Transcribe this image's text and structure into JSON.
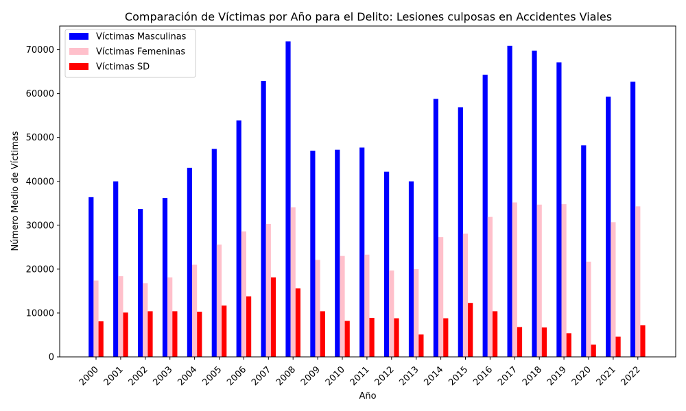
{
  "chart_data": {
    "type": "bar",
    "title": "Comparación de Víctimas por Año para el Delito: Lesiones culposas en Accidentes Viales",
    "xlabel": "Año",
    "ylabel": "Número Medio de Víctimas",
    "ylim": [
      0,
      75400
    ],
    "yticks": [
      0,
      10000,
      20000,
      30000,
      40000,
      50000,
      60000,
      70000
    ],
    "legend_position": "top-left",
    "grid": false,
    "categories": [
      "2000",
      "2001",
      "2002",
      "2003",
      "2004",
      "2005",
      "2006",
      "2007",
      "2008",
      "2009",
      "2010",
      "2011",
      "2012",
      "2013",
      "2014",
      "2015",
      "2016",
      "2017",
      "2018",
      "2019",
      "2020",
      "2021",
      "2022"
    ],
    "series": [
      {
        "name": "Víctimas Masculinas",
        "color": "#0000ff",
        "values": [
          36400,
          40000,
          33700,
          36200,
          43100,
          47400,
          53900,
          62900,
          71900,
          47000,
          47200,
          47700,
          42200,
          40000,
          58800,
          56900,
          64300,
          70900,
          69800,
          67100,
          48200,
          59300,
          62700
        ]
      },
      {
        "name": "Víctimas Femeninas",
        "color": "#ffc0cb",
        "values": [
          17400,
          18400,
          16800,
          18100,
          21000,
          25600,
          28600,
          30300,
          34100,
          22100,
          23000,
          23300,
          19700,
          20000,
          27300,
          28100,
          31900,
          35200,
          34700,
          34800,
          21700,
          30700,
          34300
        ]
      },
      {
        "name": "Víctimas SD",
        "color": "#ff0000",
        "values": [
          8100,
          10100,
          10400,
          10400,
          10300,
          11700,
          13800,
          18100,
          15600,
          10400,
          8200,
          8900,
          8800,
          5100,
          8800,
          12300,
          10400,
          6800,
          6700,
          5400,
          2800,
          4600,
          7200
        ]
      }
    ]
  }
}
